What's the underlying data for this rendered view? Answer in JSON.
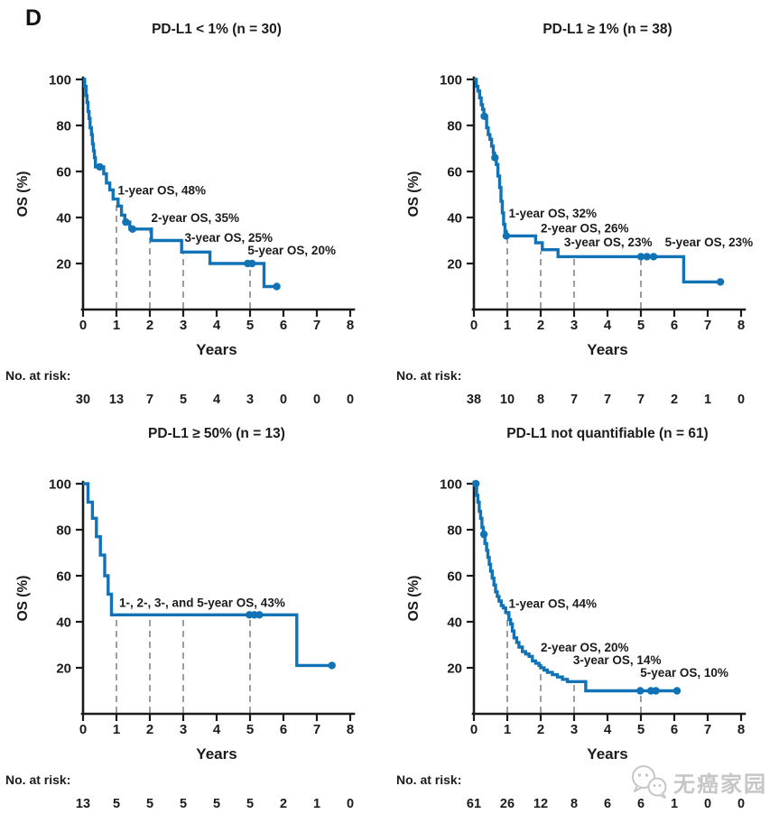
{
  "figure_label": "D",
  "watermark": {
    "text": "无癌家园",
    "icon": "wechat-icon"
  },
  "risk_label": "No. at risk:",
  "axes": {
    "xlabel": "Years",
    "ylabel": "OS (%)",
    "x_ticks": [
      0,
      1,
      2,
      3,
      4,
      5,
      6,
      7,
      8
    ],
    "y_ticks": [
      20,
      40,
      60,
      80,
      100
    ],
    "xlim": [
      0,
      8
    ],
    "ylim": [
      0,
      100
    ],
    "grid": "off"
  },
  "colors": {
    "curve": "#1173b5",
    "dashed_guide": "#9e9e9e",
    "axis_text": "#1b1b1b",
    "watermark": "#c6c6c6"
  },
  "chart_data": [
    {
      "type": "line",
      "subtype": "kaplan-meier-step",
      "title": "PD-L1 < 1% (n = 30)",
      "xlabel": "Years",
      "ylabel": "OS (%)",
      "xlim": [
        0,
        8
      ],
      "ylim": [
        0,
        100
      ],
      "km_steps": [
        [
          0,
          100
        ],
        [
          0.05,
          97
        ],
        [
          0.09,
          93
        ],
        [
          0.12,
          90
        ],
        [
          0.15,
          86
        ],
        [
          0.18,
          83
        ],
        [
          0.21,
          79
        ],
        [
          0.25,
          76
        ],
        [
          0.28,
          72
        ],
        [
          0.31,
          69
        ],
        [
          0.34,
          66
        ],
        [
          0.37,
          62
        ],
        [
          0.62,
          59
        ],
        [
          0.7,
          55
        ],
        [
          0.8,
          52
        ],
        [
          0.9,
          48
        ],
        [
          1.05,
          45
        ],
        [
          1.15,
          41
        ],
        [
          1.25,
          38
        ],
        [
          1.4,
          35
        ],
        [
          2.05,
          30
        ],
        [
          2.95,
          25
        ],
        [
          3.8,
          20
        ],
        [
          5.42,
          10
        ]
      ],
      "end_x": 5.8,
      "censor_marks": [
        [
          0.5,
          62
        ],
        [
          1.28,
          38
        ],
        [
          1.48,
          35
        ],
        [
          4.93,
          20
        ],
        [
          5.06,
          20
        ],
        [
          5.8,
          10
        ]
      ],
      "dashed_lines": [
        [
          1,
          48
        ],
        [
          2,
          35
        ],
        [
          3,
          25
        ],
        [
          5,
          20
        ]
      ],
      "annotations": [
        {
          "x": 1.04,
          "y": 50,
          "text": "1-year OS, 48%"
        },
        {
          "x": 2.04,
          "y": 38,
          "text": "2-year OS, 35%"
        },
        {
          "x": 3.04,
          "y": 29.5,
          "text": "3-year OS, 25%"
        },
        {
          "x": 4.93,
          "y": 24,
          "text": "5-year OS, 20%"
        }
      ],
      "no_at_risk": [
        30,
        13,
        7,
        5,
        4,
        3,
        0,
        0,
        0
      ]
    },
    {
      "type": "line",
      "subtype": "kaplan-meier-step",
      "title": "PD-L1 ≥ 1% (n = 38)",
      "xlabel": "Years",
      "ylabel": "OS (%)",
      "xlim": [
        0,
        8
      ],
      "ylim": [
        0,
        100
      ],
      "km_steps": [
        [
          0,
          100
        ],
        [
          0.07,
          97
        ],
        [
          0.12,
          95
        ],
        [
          0.17,
          92
        ],
        [
          0.22,
          89
        ],
        [
          0.26,
          87
        ],
        [
          0.3,
          84
        ],
        [
          0.38,
          79
        ],
        [
          0.43,
          76
        ],
        [
          0.48,
          74
        ],
        [
          0.53,
          71
        ],
        [
          0.58,
          68
        ],
        [
          0.62,
          66
        ],
        [
          0.67,
          63
        ],
        [
          0.72,
          58
        ],
        [
          0.77,
          53
        ],
        [
          0.81,
          47
        ],
        [
          0.85,
          42
        ],
        [
          0.89,
          37
        ],
        [
          0.93,
          34
        ],
        [
          0.97,
          32
        ],
        [
          1.85,
          29
        ],
        [
          2.05,
          26
        ],
        [
          2.52,
          23
        ],
        [
          6.28,
          12
        ]
      ],
      "end_x": 7.38,
      "censor_marks": [
        [
          0.31,
          84
        ],
        [
          0.63,
          66
        ],
        [
          0.97,
          32
        ],
        [
          5.0,
          23
        ],
        [
          5.18,
          23
        ],
        [
          5.38,
          23
        ],
        [
          7.38,
          12
        ]
      ],
      "dashed_lines": [
        [
          1,
          32
        ],
        [
          2,
          26
        ],
        [
          3,
          23
        ],
        [
          5,
          23
        ]
      ],
      "annotations": [
        {
          "x": 1.04,
          "y": 40,
          "text": "1-year OS, 32%"
        },
        {
          "x": 2.0,
          "y": 33.5,
          "text": "2-year OS, 26%"
        },
        {
          "x": 2.7,
          "y": 27.5,
          "text": "3-year OS, 23%"
        },
        {
          "x": 5.72,
          "y": 27.5,
          "text": "5-year OS, 23%"
        }
      ],
      "no_at_risk": [
        38,
        10,
        8,
        7,
        7,
        7,
        2,
        1,
        0
      ]
    },
    {
      "type": "line",
      "subtype": "kaplan-meier-step",
      "title": "PD-L1 ≥ 50% (n = 13)",
      "xlabel": "Years",
      "ylabel": "OS (%)",
      "xlim": [
        0,
        8
      ],
      "ylim": [
        0,
        100
      ],
      "km_steps": [
        [
          0,
          100
        ],
        [
          0.15,
          92
        ],
        [
          0.28,
          85
        ],
        [
          0.4,
          77
        ],
        [
          0.52,
          69
        ],
        [
          0.65,
          60
        ],
        [
          0.75,
          52
        ],
        [
          0.85,
          43
        ],
        [
          6.4,
          21
        ]
      ],
      "end_x": 7.45,
      "censor_marks": [
        [
          4.98,
          43
        ],
        [
          5.13,
          43
        ],
        [
          5.28,
          43
        ],
        [
          7.45,
          21
        ]
      ],
      "dashed_lines": [
        [
          1,
          43
        ],
        [
          2,
          43
        ],
        [
          3,
          43
        ],
        [
          5,
          43
        ]
      ],
      "annotations": [
        {
          "x": 1.08,
          "y": 46.5,
          "text": "1-, 2-, 3-, and 5-year OS, 43%"
        }
      ],
      "no_at_risk": [
        13,
        5,
        5,
        5,
        5,
        5,
        2,
        1,
        0
      ]
    },
    {
      "type": "line",
      "subtype": "kaplan-meier-step",
      "title": "PD-L1 not quantifiable (n = 61)",
      "xlabel": "Years",
      "ylabel": "OS (%)",
      "xlim": [
        0,
        8
      ],
      "ylim": [
        0,
        100
      ],
      "km_steps": [
        [
          0,
          100
        ],
        [
          0.08,
          95
        ],
        [
          0.12,
          92
        ],
        [
          0.16,
          88
        ],
        [
          0.2,
          85
        ],
        [
          0.24,
          81
        ],
        [
          0.28,
          78
        ],
        [
          0.33,
          74
        ],
        [
          0.38,
          71
        ],
        [
          0.42,
          68
        ],
        [
          0.46,
          65
        ],
        [
          0.5,
          62
        ],
        [
          0.55,
          59
        ],
        [
          0.6,
          56
        ],
        [
          0.65,
          53
        ],
        [
          0.7,
          51
        ],
        [
          0.75,
          49
        ],
        [
          0.82,
          47
        ],
        [
          0.88,
          46
        ],
        [
          0.95,
          44
        ],
        [
          1.05,
          41
        ],
        [
          1.1,
          39
        ],
        [
          1.15,
          36
        ],
        [
          1.2,
          33
        ],
        [
          1.28,
          31
        ],
        [
          1.35,
          29
        ],
        [
          1.45,
          27
        ],
        [
          1.55,
          26
        ],
        [
          1.65,
          25
        ],
        [
          1.75,
          23
        ],
        [
          1.85,
          22
        ],
        [
          1.95,
          21
        ],
        [
          2.0,
          20
        ],
        [
          2.1,
          19
        ],
        [
          2.2,
          18
        ],
        [
          2.35,
          17
        ],
        [
          2.5,
          16
        ],
        [
          2.65,
          15
        ],
        [
          2.8,
          14
        ],
        [
          3.35,
          10
        ]
      ],
      "end_x": 6.1,
      "censor_marks": [
        [
          0.06,
          100
        ],
        [
          0.3,
          78
        ],
        [
          4.98,
          10
        ],
        [
          5.3,
          10
        ],
        [
          5.45,
          10
        ],
        [
          6.08,
          10
        ]
      ],
      "dashed_lines": [
        [
          1,
          44
        ],
        [
          2,
          20
        ],
        [
          3,
          14
        ],
        [
          5,
          10
        ]
      ],
      "annotations": [
        {
          "x": 1.04,
          "y": 46,
          "text": "1-year OS, 44%"
        },
        {
          "x": 2.0,
          "y": 27,
          "text": "2-year OS, 20%"
        },
        {
          "x": 2.97,
          "y": 21.5,
          "text": "3-year OS, 14%"
        },
        {
          "x": 4.98,
          "y": 16,
          "text": "5-year OS, 10%"
        }
      ],
      "no_at_risk": [
        61,
        26,
        12,
        8,
        6,
        6,
        1,
        0,
        0
      ]
    }
  ]
}
